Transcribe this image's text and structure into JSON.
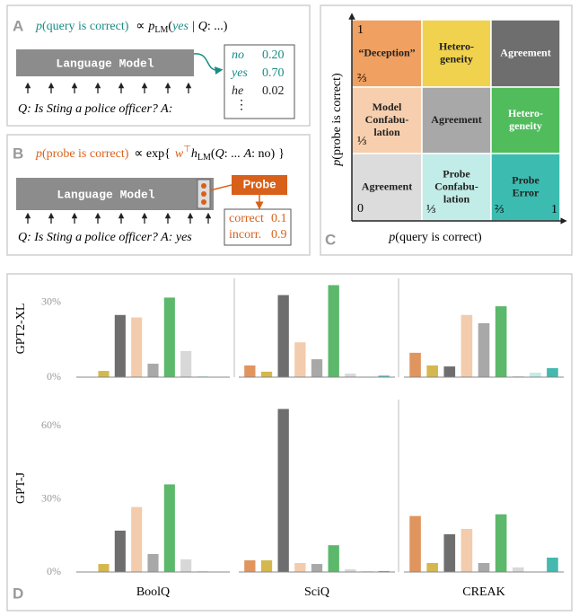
{
  "panel_a": {
    "label": "A",
    "formula": [
      "p",
      "(query is correct)",
      "∝",
      "p",
      "LM",
      "(",
      "yes",
      "|",
      "Q",
      ": ...)"
    ],
    "model": "Language Model",
    "prompt": "Q: Is Sting a police officer? A:",
    "outputs": [
      [
        "no",
        "0.20"
      ],
      [
        "yes",
        "0.70"
      ],
      [
        "he",
        "0.02"
      ]
    ],
    "more": "⋮"
  },
  "panel_b": {
    "label": "B",
    "formula": [
      "p",
      "(probe is correct)",
      "∝ exp{",
      "w",
      "⊤",
      "h",
      "LM",
      "(",
      "Q",
      ": ...",
      "A",
      ": no)",
      "}"
    ],
    "model": "Language Model",
    "probe": "Probe",
    "prompt": "Q: Is Sting a police officer? A: yes",
    "outputs": [
      [
        "correct",
        "0.1"
      ],
      [
        "incorr.",
        "0.9"
      ]
    ]
  },
  "panel_c": {
    "label": "C",
    "x_label": [
      "p",
      "(query is correct)"
    ],
    "y_label": [
      "p",
      "(probe is correct)"
    ],
    "left_ticks": [
      "1",
      "⅔",
      "⅓",
      "0"
    ],
    "bottom_ticks": [
      "⅓",
      "⅔",
      "1"
    ],
    "cells": [
      {
        "lines": [
          "“Deception”"
        ],
        "color": "#f0a060",
        "text_color": "#222"
      },
      {
        "lines": [
          "Hetero-",
          "geneity"
        ],
        "color": "#f0d24e",
        "text_color": "#222"
      },
      {
        "lines": [
          "Agreement"
        ],
        "color": "#6e6e6e",
        "text_color": "#fff"
      },
      {
        "lines": [
          "Model",
          "Confabu-",
          "lation"
        ],
        "color": "#f7cfae",
        "text_color": "#222"
      },
      {
        "lines": [
          "Agreement"
        ],
        "color": "#a8a8a8",
        "text_color": "#222"
      },
      {
        "lines": [
          "Hetero-",
          "geneity"
        ],
        "color": "#50bc5c",
        "text_color": "#fff"
      },
      {
        "lines": [
          "Agreement"
        ],
        "color": "#dcdcdc",
        "text_color": "#222"
      },
      {
        "lines": [
          "Probe",
          "Confabu-",
          "lation"
        ],
        "color": "#c2ece7",
        "text_color": "#222"
      },
      {
        "lines": [
          "Probe",
          "Error"
        ],
        "color": "#3cbcb0",
        "text_color": "#222"
      }
    ]
  },
  "panel_d": {
    "label": "D",
    "rows": [
      "GPT2-XL",
      "GPT-J"
    ],
    "columns": [
      "BoolQ",
      "SciQ",
      "CREAK"
    ]
  },
  "chart_data": [
    {
      "type": "bar",
      "values": [
        0,
        2.5,
        25,
        24,
        5.4,
        32,
        10.5,
        0.4,
        0
      ],
      "colors": [
        "#e0955f",
        "#d4b84e",
        "#6e6e6e",
        "#f2ccac",
        "#a8a8a8",
        "#5cb86a",
        "#d8d8d8",
        "#c4ebe6",
        "#45b8b0"
      ],
      "ylim": [
        0,
        39
      ],
      "yticks": [
        {
          "value": 0,
          "label": "0%"
        },
        {
          "value": 30,
          "label": "30%"
        }
      ]
    },
    {
      "type": "bar",
      "values": [
        4.7,
        2.2,
        33,
        14,
        7.2,
        37,
        1.4,
        0.2,
        0.6
      ],
      "colors": [
        "#e0955f",
        "#d4b84e",
        "#6e6e6e",
        "#f2ccac",
        "#a8a8a8",
        "#5cb86a",
        "#d8d8d8",
        "#c4ebe6",
        "#45b8b0"
      ],
      "ylim": [
        0,
        39
      ]
    },
    {
      "type": "bar",
      "values": [
        9.8,
        4.7,
        4.3,
        25,
        21.7,
        28.5,
        0.4,
        1.8,
        3.6
      ],
      "colors": [
        "#e0955f",
        "#d4b84e",
        "#6e6e6e",
        "#f2ccac",
        "#a8a8a8",
        "#5cb86a",
        "#d8d8d8",
        "#c4ebe6",
        "#45b8b0"
      ],
      "ylim": [
        0,
        39
      ]
    },
    {
      "type": "bar",
      "values": [
        0,
        3.3,
        17,
        26.7,
        7.4,
        36,
        5.2,
        0.4,
        0
      ],
      "colors": [
        "#e0955f",
        "#d4b84e",
        "#6e6e6e",
        "#f2ccac",
        "#a8a8a8",
        "#5cb86a",
        "#d8d8d8",
        "#c4ebe6",
        "#45b8b0"
      ],
      "ylim": [
        0,
        69
      ],
      "yticks": [
        {
          "value": 0,
          "label": "0%"
        },
        {
          "value": 30,
          "label": "30%"
        },
        {
          "value": 60,
          "label": "60%"
        }
      ]
    },
    {
      "type": "bar",
      "values": [
        4.8,
        4.8,
        67,
        3.7,
        3.3,
        11,
        1.1,
        0.4,
        0.4
      ],
      "colors": [
        "#e0955f",
        "#d4b84e",
        "#6e6e6e",
        "#f2ccac",
        "#a8a8a8",
        "#5cb86a",
        "#d8d8d8",
        "#c4ebe6",
        "#45b8b0"
      ],
      "ylim": [
        0,
        69
      ]
    },
    {
      "type": "bar",
      "values": [
        23,
        3.7,
        15.5,
        17.7,
        3.7,
        23.7,
        1.9,
        0,
        5.9
      ],
      "colors": [
        "#e0955f",
        "#d4b84e",
        "#6e6e6e",
        "#f2ccac",
        "#a8a8a8",
        "#5cb86a",
        "#d8d8d8",
        "#c4ebe6",
        "#45b8b0"
      ],
      "ylim": [
        0,
        69
      ]
    }
  ]
}
